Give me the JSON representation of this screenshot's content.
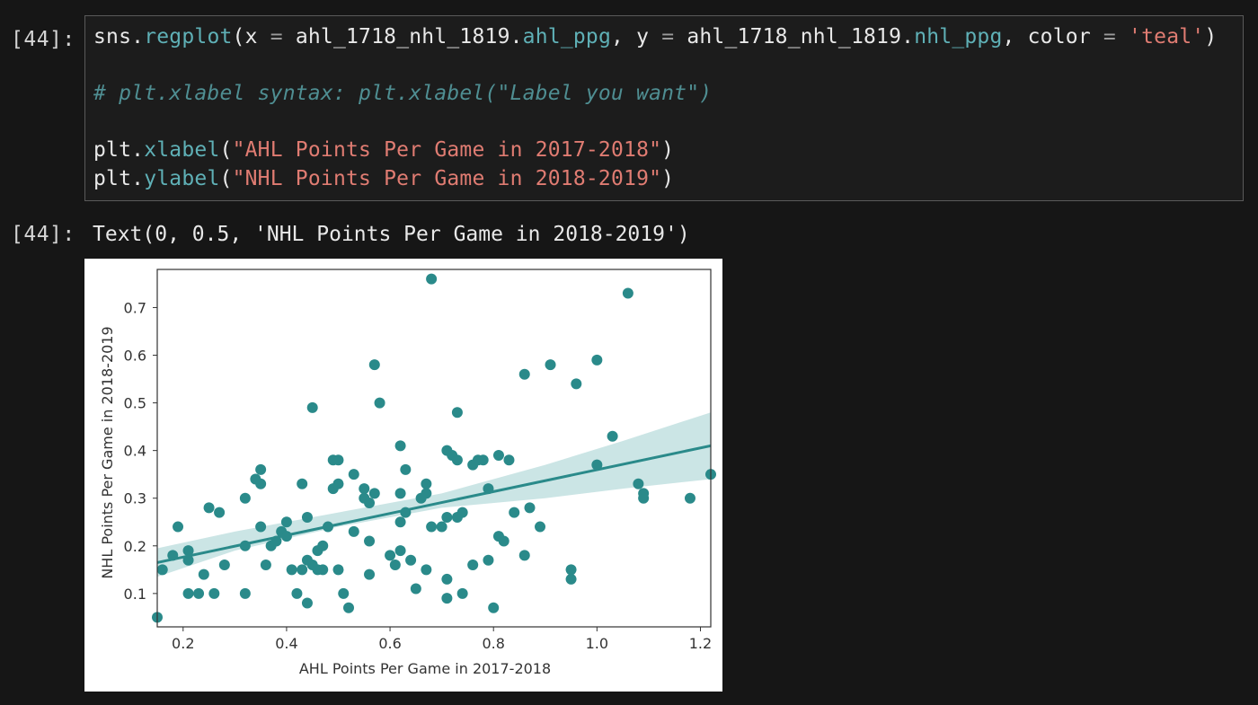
{
  "cell": {
    "input_prompt": "[44]:",
    "output_prompt": "[44]:",
    "code": {
      "l1_a": "sns.",
      "l1_fn": "regplot",
      "l1_b": "(x ",
      "l1_eq1": "=",
      "l1_c": " ahl_1718_nhl_1819.",
      "l1_attr1": "ahl_ppg",
      "l1_d": ", y ",
      "l1_eq2": "=",
      "l1_e": " ahl_1718_nhl_1819.",
      "l1_attr2": "nhl_ppg",
      "l1_f": ", color ",
      "l1_eq3": "=",
      "l1_g": " ",
      "l1_str": "'teal'",
      "l1_h": ")",
      "comment": "# plt.xlabel syntax: plt.xlabel(\"Label you want\")",
      "l4_a": "plt.",
      "l4_fn": "xlabel",
      "l4_b": "(",
      "l4_str": "\"AHL Points Per Game in 2017-2018\"",
      "l4_c": ")",
      "l5_a": "plt.",
      "l5_fn": "ylabel",
      "l5_b": "(",
      "l5_str": "\"NHL Points Per Game in 2018-2019\"",
      "l5_c": ")"
    },
    "output_text": "Text(0, 0.5, 'NHL Points Per Game in 2018-2019')"
  },
  "colors": {
    "background": "#161616",
    "teal": "#2a8a8a",
    "ci_band": "#b9dcdc"
  },
  "chart_data": {
    "type": "scatter",
    "xlabel": "AHL Points Per Game in 2017-2018",
    "ylabel": "NHL Points Per Game in 2018-2019",
    "xlim": [
      0.15,
      1.22
    ],
    "ylim": [
      0.03,
      0.78
    ],
    "xticks": [
      0.2,
      0.4,
      0.6,
      0.8,
      1.0,
      1.2
    ],
    "xtick_labels": [
      "0.2",
      "0.4",
      "0.6",
      "0.8",
      "1.0",
      "1.2"
    ],
    "yticks": [
      0.1,
      0.2,
      0.3,
      0.4,
      0.5,
      0.6,
      0.7
    ],
    "ytick_labels": [
      "0.1",
      "0.2",
      "0.3",
      "0.4",
      "0.5",
      "0.6",
      "0.7"
    ],
    "grid": false,
    "regression_line": {
      "x": [
        0.15,
        1.22
      ],
      "y": [
        0.165,
        0.41
      ]
    },
    "ci_band": {
      "x": [
        0.15,
        0.3,
        0.5,
        0.6,
        0.7,
        0.9,
        1.05,
        1.22
      ],
      "lower": [
        0.135,
        0.19,
        0.24,
        0.26,
        0.28,
        0.3,
        0.32,
        0.34
      ],
      "upper": [
        0.195,
        0.23,
        0.27,
        0.29,
        0.31,
        0.37,
        0.42,
        0.48
      ]
    },
    "points": [
      [
        0.15,
        0.05
      ],
      [
        0.16,
        0.15
      ],
      [
        0.18,
        0.18
      ],
      [
        0.19,
        0.24
      ],
      [
        0.21,
        0.19
      ],
      [
        0.21,
        0.17
      ],
      [
        0.21,
        0.1
      ],
      [
        0.23,
        0.1
      ],
      [
        0.24,
        0.14
      ],
      [
        0.25,
        0.28
      ],
      [
        0.26,
        0.1
      ],
      [
        0.27,
        0.27
      ],
      [
        0.28,
        0.16
      ],
      [
        0.32,
        0.3
      ],
      [
        0.32,
        0.1
      ],
      [
        0.32,
        0.2
      ],
      [
        0.34,
        0.34
      ],
      [
        0.35,
        0.36
      ],
      [
        0.35,
        0.33
      ],
      [
        0.35,
        0.24
      ],
      [
        0.36,
        0.16
      ],
      [
        0.37,
        0.2
      ],
      [
        0.38,
        0.21
      ],
      [
        0.39,
        0.23
      ],
      [
        0.4,
        0.22
      ],
      [
        0.4,
        0.25
      ],
      [
        0.41,
        0.15
      ],
      [
        0.42,
        0.1
      ],
      [
        0.43,
        0.33
      ],
      [
        0.43,
        0.15
      ],
      [
        0.44,
        0.26
      ],
      [
        0.44,
        0.17
      ],
      [
        0.44,
        0.08
      ],
      [
        0.45,
        0.49
      ],
      [
        0.45,
        0.16
      ],
      [
        0.46,
        0.19
      ],
      [
        0.46,
        0.15
      ],
      [
        0.47,
        0.2
      ],
      [
        0.47,
        0.15
      ],
      [
        0.48,
        0.24
      ],
      [
        0.49,
        0.38
      ],
      [
        0.49,
        0.32
      ],
      [
        0.5,
        0.38
      ],
      [
        0.5,
        0.33
      ],
      [
        0.5,
        0.15
      ],
      [
        0.51,
        0.1
      ],
      [
        0.52,
        0.07
      ],
      [
        0.53,
        0.35
      ],
      [
        0.53,
        0.23
      ],
      [
        0.55,
        0.32
      ],
      [
        0.55,
        0.3
      ],
      [
        0.56,
        0.29
      ],
      [
        0.56,
        0.14
      ],
      [
        0.56,
        0.21
      ],
      [
        0.57,
        0.31
      ],
      [
        0.57,
        0.58
      ],
      [
        0.58,
        0.5
      ],
      [
        0.6,
        0.18
      ],
      [
        0.61,
        0.16
      ],
      [
        0.62,
        0.41
      ],
      [
        0.62,
        0.31
      ],
      [
        0.62,
        0.25
      ],
      [
        0.62,
        0.19
      ],
      [
        0.63,
        0.36
      ],
      [
        0.63,
        0.27
      ],
      [
        0.64,
        0.17
      ],
      [
        0.65,
        0.11
      ],
      [
        0.66,
        0.3
      ],
      [
        0.67,
        0.33
      ],
      [
        0.67,
        0.31
      ],
      [
        0.67,
        0.15
      ],
      [
        0.68,
        0.76
      ],
      [
        0.68,
        0.24
      ],
      [
        0.7,
        0.24
      ],
      [
        0.71,
        0.4
      ],
      [
        0.71,
        0.26
      ],
      [
        0.71,
        0.13
      ],
      [
        0.71,
        0.09
      ],
      [
        0.72,
        0.39
      ],
      [
        0.73,
        0.48
      ],
      [
        0.73,
        0.38
      ],
      [
        0.73,
        0.26
      ],
      [
        0.74,
        0.27
      ],
      [
        0.74,
        0.1
      ],
      [
        0.76,
        0.37
      ],
      [
        0.76,
        0.16
      ],
      [
        0.77,
        0.38
      ],
      [
        0.78,
        0.38
      ],
      [
        0.79,
        0.32
      ],
      [
        0.79,
        0.17
      ],
      [
        0.8,
        0.07
      ],
      [
        0.81,
        0.39
      ],
      [
        0.81,
        0.22
      ],
      [
        0.82,
        0.21
      ],
      [
        0.83,
        0.38
      ],
      [
        0.84,
        0.27
      ],
      [
        0.86,
        0.56
      ],
      [
        0.86,
        0.18
      ],
      [
        0.87,
        0.28
      ],
      [
        0.89,
        0.24
      ],
      [
        0.91,
        0.58
      ],
      [
        0.95,
        0.15
      ],
      [
        0.95,
        0.13
      ],
      [
        0.96,
        0.54
      ],
      [
        1.0,
        0.59
      ],
      [
        1.0,
        0.37
      ],
      [
        1.03,
        0.43
      ],
      [
        1.06,
        0.73
      ],
      [
        1.08,
        0.33
      ],
      [
        1.09,
        0.31
      ],
      [
        1.09,
        0.3
      ],
      [
        1.18,
        0.3
      ],
      [
        1.22,
        0.35
      ]
    ]
  }
}
